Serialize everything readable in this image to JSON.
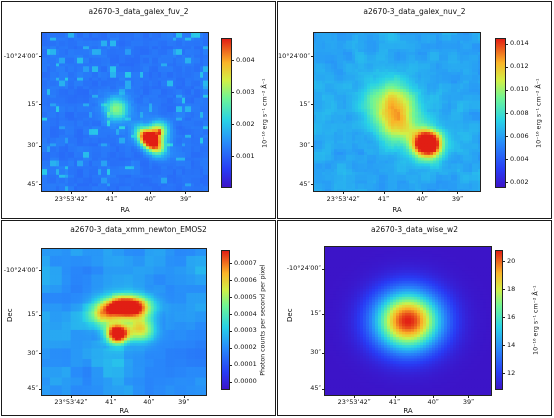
{
  "chart_data": [
    {
      "type": "heatmap",
      "title": "a2670-3_data_galex_fuv_2",
      "xlabel": "RA",
      "ylabel": "",
      "x_ticks": [
        "23°53’42ʺ",
        "41ʺ",
        "40ʺ",
        "39ʺ"
      ],
      "y_ticks": [
        "-10°24′00″",
        "15″",
        "30″",
        "45″"
      ],
      "colorbar": {
        "label": "10⁻¹⁶ erg s⁻¹ cm⁻² Å⁻¹",
        "ticks": [
          "0.004",
          "0.003",
          "0.002",
          "0.001"
        ],
        "tick_values": [
          0.004,
          0.003,
          0.002,
          0.001
        ],
        "range": [
          0.0,
          0.0047
        ]
      },
      "background_level": 0.22,
      "sources": [
        {
          "x": 0.65,
          "y": 0.68,
          "strength": 1.0,
          "spread": 0.035,
          "shape": "elongated"
        },
        {
          "x": 0.7,
          "y": 0.62,
          "strength": 0.5,
          "spread": 0.04
        },
        {
          "x": 0.45,
          "y": 0.48,
          "strength": 0.4,
          "spread": 0.05
        }
      ],
      "noise": "sparse-points"
    },
    {
      "type": "heatmap",
      "title": "a2670-3_data_galex_nuv_2",
      "xlabel": "RA",
      "ylabel": "",
      "x_ticks": [
        "23°53’42ʺ",
        "41ʺ",
        "40ʺ",
        "39ʺ"
      ],
      "y_ticks": [
        "-10°24′00″",
        "15″",
        "30″",
        "45″"
      ],
      "colorbar": {
        "label": "10⁻¹⁶ erg s⁻¹ cm⁻² Å⁻¹",
        "ticks": [
          "0.014",
          "0.012",
          "0.010",
          "0.008",
          "0.006",
          "0.004",
          "0.002"
        ],
        "tick_values": [
          0.014,
          0.012,
          0.01,
          0.008,
          0.006,
          0.004,
          0.002
        ],
        "range": [
          0.0015,
          0.0145
        ]
      },
      "background_level": 0.28,
      "sources": [
        {
          "x": 0.68,
          "y": 0.7,
          "strength": 1.0,
          "spread": 0.06
        },
        {
          "x": 0.47,
          "y": 0.45,
          "strength": 0.42,
          "spread": 0.1
        },
        {
          "x": 0.52,
          "y": 0.6,
          "strength": 0.3,
          "spread": 0.08
        }
      ],
      "noise": "dense-mottled"
    },
    {
      "type": "heatmap",
      "title": "a2670-3_data_xmm_newton_EMOS2",
      "xlabel": "RA",
      "ylabel": "Dec",
      "x_ticks": [
        "23°53’42ʺ",
        "41ʺ",
        "40ʺ",
        "39ʺ"
      ],
      "y_ticks": [
        "-10°24′00″",
        "15″",
        "30″",
        "45″"
      ],
      "colorbar": {
        "label": "Photon counts per second per pixel",
        "ticks": [
          "0.0007",
          "0.0006",
          "0.0005",
          "0.0004",
          "0.0003",
          "0.0002",
          "0.0001",
          "0.0000"
        ],
        "tick_values": [
          0.0007,
          0.0006,
          0.0005,
          0.0004,
          0.0003,
          0.0002,
          0.0001,
          0.0
        ],
        "range": [
          -5e-05,
          0.00078
        ]
      },
      "background_level": 0.25,
      "sources": [
        {
          "x": 0.52,
          "y": 0.4,
          "strength": 1.0,
          "spread": 0.05,
          "shape": "elongated-horizontal"
        },
        {
          "x": 0.46,
          "y": 0.58,
          "strength": 0.95,
          "spread": 0.045
        },
        {
          "x": 0.6,
          "y": 0.55,
          "strength": 0.45,
          "spread": 0.06
        },
        {
          "x": 0.38,
          "y": 0.45,
          "strength": 0.35,
          "spread": 0.06
        }
      ],
      "noise": "smooth-blobs"
    },
    {
      "type": "heatmap",
      "title": "a2670-3_data_wise_w2",
      "xlabel": "RA",
      "ylabel": "Dec",
      "x_ticks": [
        "23°53’42ʺ",
        "41ʺ",
        "40ʺ",
        "39ʺ"
      ],
      "y_ticks": [
        "-10°24′00″",
        "15″",
        "30″",
        "45″"
      ],
      "colorbar": {
        "label": "10⁻¹⁶ erg s⁻¹ cm⁻² Å⁻¹",
        "ticks": [
          "20",
          "18",
          "16",
          "14",
          "12"
        ],
        "tick_values": [
          20,
          18,
          16,
          14,
          12
        ],
        "range": [
          10.8,
          20.8
        ]
      },
      "background_level": 0.0,
      "sources": [
        {
          "x": 0.5,
          "y": 0.5,
          "strength": 1.0,
          "spread": 0.14
        }
      ],
      "noise": "none"
    }
  ]
}
